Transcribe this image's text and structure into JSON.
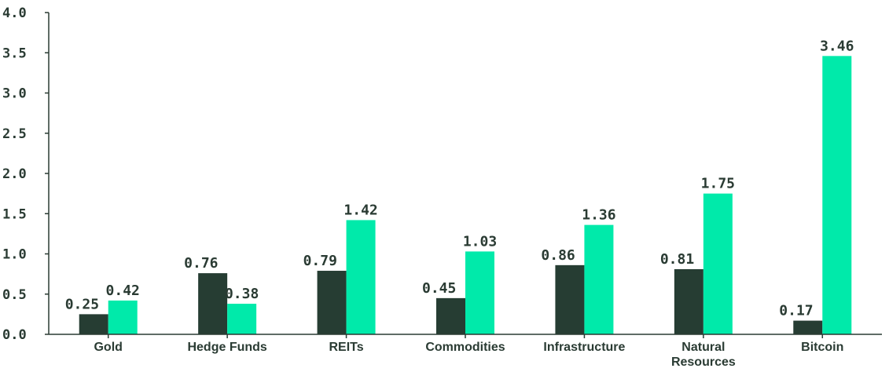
{
  "chart_data": {
    "type": "bar",
    "categories": [
      "Gold",
      "Hedge Funds",
      "REITs",
      "Commodities",
      "Infrastructure",
      "Natural Resources",
      "Bitcoin"
    ],
    "category_lines": [
      [
        "Gold"
      ],
      [
        "Hedge Funds"
      ],
      [
        "REITs"
      ],
      [
        "Commodities"
      ],
      [
        "Infrastructure"
      ],
      [
        "Natural",
        "Resources"
      ],
      [
        "Bitcoin"
      ]
    ],
    "series": [
      {
        "color": "#263d33",
        "values": [
          0.25,
          0.76,
          0.79,
          0.45,
          0.86,
          0.81,
          0.17
        ]
      },
      {
        "color": "#00eaaa",
        "values": [
          0.42,
          0.38,
          1.42,
          1.03,
          1.36,
          1.75,
          3.46
        ]
      }
    ],
    "value_labels": [
      [
        "0.25",
        "0.76",
        "0.79",
        "0.45",
        "0.86",
        "0.81",
        "0.17"
      ],
      [
        "0.42",
        "0.38",
        "1.42",
        "1.03",
        "1.36",
        "1.75",
        "3.46"
      ]
    ],
    "ylim": [
      0,
      4.0
    ],
    "yticks": [
      "0.0",
      "0.5",
      "1.0",
      "1.5",
      "2.0",
      "2.5",
      "3.0",
      "3.5",
      "4.0"
    ],
    "title": "",
    "xlabel": "",
    "ylabel": "",
    "grid": false,
    "legend": "none"
  }
}
